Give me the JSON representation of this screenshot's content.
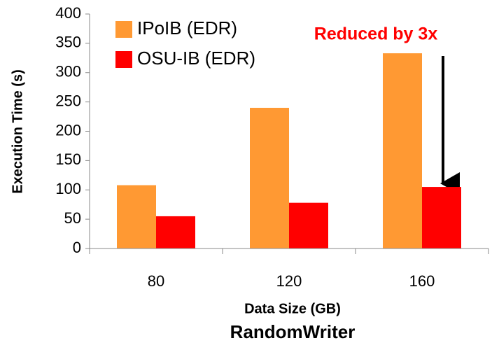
{
  "chart_data": {
    "type": "bar",
    "title": "RandomWriter",
    "x_label": "Data Size (GB)",
    "y_label": "Execution Time (s)",
    "annotation": "Reduced by 3x",
    "categories": [
      "80",
      "120",
      "160"
    ],
    "series": [
      {
        "name": "IPoIB (EDR)",
        "color": "#ff9933",
        "values": [
          108,
          240,
          333
        ]
      },
      {
        "name": "OSU-IB (EDR)",
        "color": "#ff0000",
        "values": [
          55,
          78,
          105
        ]
      }
    ],
    "ylim": [
      0,
      400
    ],
    "yticks": [
      0,
      50,
      100,
      150,
      200,
      250,
      300,
      350,
      400
    ],
    "grid": false,
    "legend": "upper left"
  }
}
